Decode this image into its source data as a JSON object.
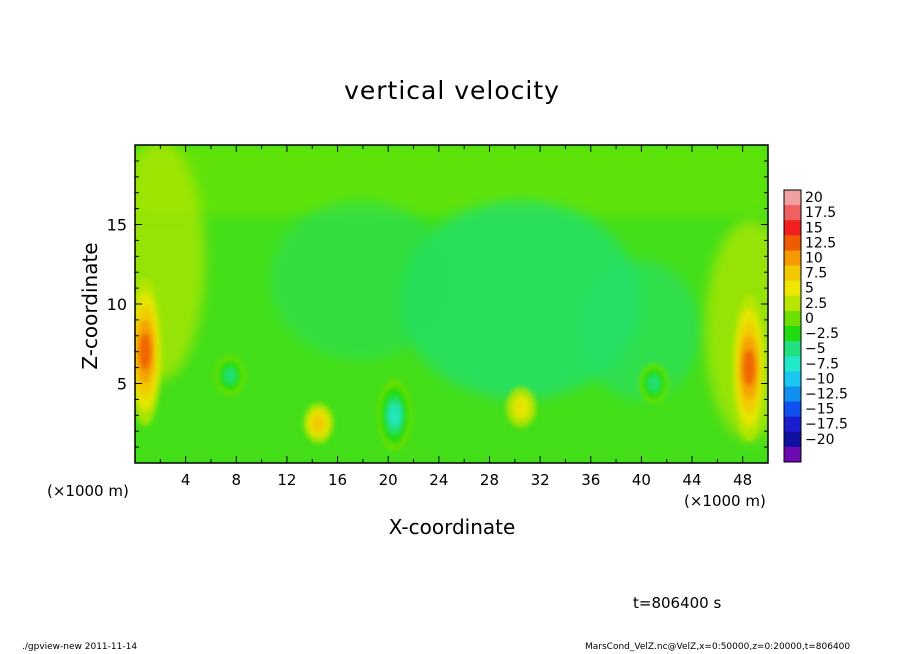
{
  "chart_data": {
    "type": "heatmap",
    "title": "vertical velocity",
    "xlabel": "X-coordinate",
    "ylabel": "Z-coordinate",
    "x_unit_label": "(×1000 m)",
    "xlim": [
      0,
      50
    ],
    "ylim": [
      0,
      20
    ],
    "x_ticks": [
      4,
      8,
      12,
      16,
      20,
      24,
      28,
      32,
      36,
      40,
      44,
      48
    ],
    "y_ticks": [
      5,
      10,
      15
    ],
    "colorbar": {
      "levels": [
        "20",
        "17.5",
        "15",
        "12.5",
        "10",
        "7.5",
        "5",
        "2.5",
        "0",
        "−2.5",
        "−5",
        "−7.5",
        "−10",
        "−12.5",
        "−15",
        "−17.5",
        "−20"
      ],
      "colors": [
        "#f0a0a0",
        "#f06060",
        "#f02020",
        "#f05a00",
        "#f59a00",
        "#f2c800",
        "#eee600",
        "#b8e600",
        "#6ee000",
        "#1fdc10",
        "#20e080",
        "#20e8c8",
        "#18c8f0",
        "#1090f0",
        "#1050f0",
        "#1c1cd0",
        "#1010a0",
        "#6a0ab0"
      ]
    },
    "features": [
      {
        "kind": "updraft",
        "x": 0.8,
        "z": 7.0,
        "w": 12.5
      },
      {
        "kind": "updraft",
        "x": 48.5,
        "z": 6.0,
        "w": 12.5
      },
      {
        "kind": "updraft",
        "x": 14.5,
        "z": 2.5,
        "w": 7.5
      },
      {
        "kind": "updraft",
        "x": 30.5,
        "z": 3.5,
        "w": 5
      },
      {
        "kind": "downdraft",
        "x": 7.5,
        "z": 5.5,
        "w": -7.5
      },
      {
        "kind": "downdraft",
        "x": 20.5,
        "z": 3.0,
        "w": -10
      },
      {
        "kind": "downdraft",
        "x": 41.0,
        "z": 5.0,
        "w": -7.5
      }
    ]
  },
  "annotations": {
    "x_unit_left": "(×1000 m)",
    "x_unit_right": "(×1000 m)",
    "time": "t=806400 s",
    "footer_left": "./gpview-new  2011-11-14",
    "footer_right": "MarsCond_VelZ.nc@VelZ,x=0:50000,z=0:20000,t=806400"
  }
}
